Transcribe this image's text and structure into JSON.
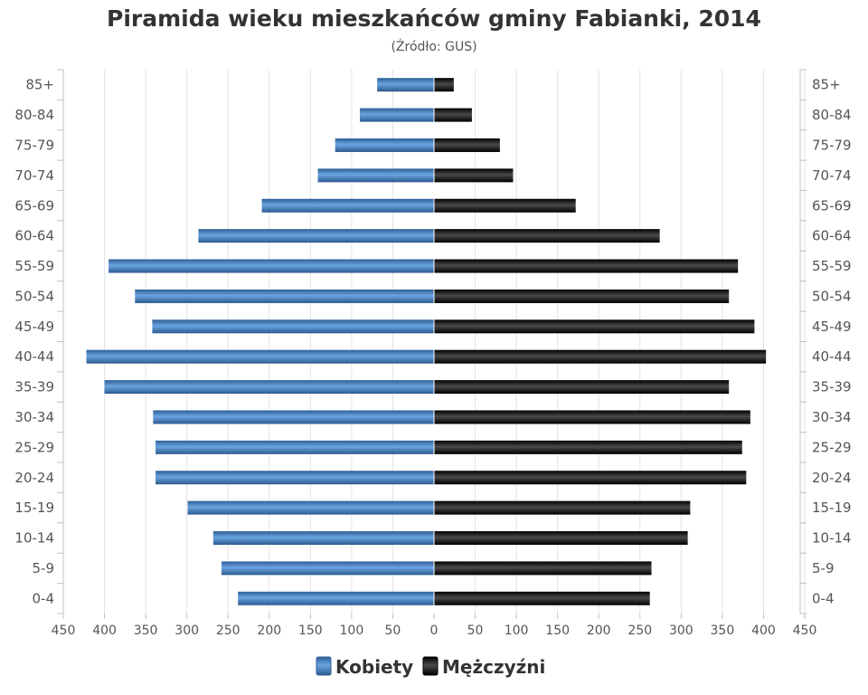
{
  "chart_data": {
    "type": "bar",
    "orientation": "horizontal-pyramid",
    "title": "Piramida wieku mieszkańców gminy Fabianki, 2014",
    "subtitle": "(Źródło: GUS)",
    "categories": [
      "85+",
      "80-84",
      "75-79",
      "70-74",
      "65-69",
      "60-64",
      "55-59",
      "50-54",
      "45-49",
      "40-44",
      "35-39",
      "30-34",
      "25-29",
      "20-24",
      "15-19",
      "10-14",
      "5-9",
      "0-4"
    ],
    "series": [
      {
        "name": "Kobiety",
        "color": "#4a86c8",
        "side": "left",
        "values": [
          69,
          90,
          120,
          141,
          209,
          286,
          395,
          363,
          342,
          422,
          400,
          341,
          338,
          338,
          299,
          268,
          258,
          238
        ]
      },
      {
        "name": "Mężczyźni",
        "color": "#1a1a1a",
        "side": "right",
        "values": [
          24,
          46,
          80,
          96,
          172,
          274,
          369,
          358,
          389,
          403,
          358,
          384,
          374,
          379,
          311,
          308,
          264,
          262
        ]
      }
    ],
    "xaxis": {
      "range": [
        -450,
        450
      ],
      "tick_labels": [
        "450",
        "400",
        "350",
        "300",
        "250",
        "200",
        "150",
        "100",
        "50",
        "0",
        "50",
        "100",
        "150",
        "200",
        "250",
        "300",
        "350",
        "400",
        "450"
      ]
    },
    "grid": true,
    "legend": "bottom-center"
  }
}
